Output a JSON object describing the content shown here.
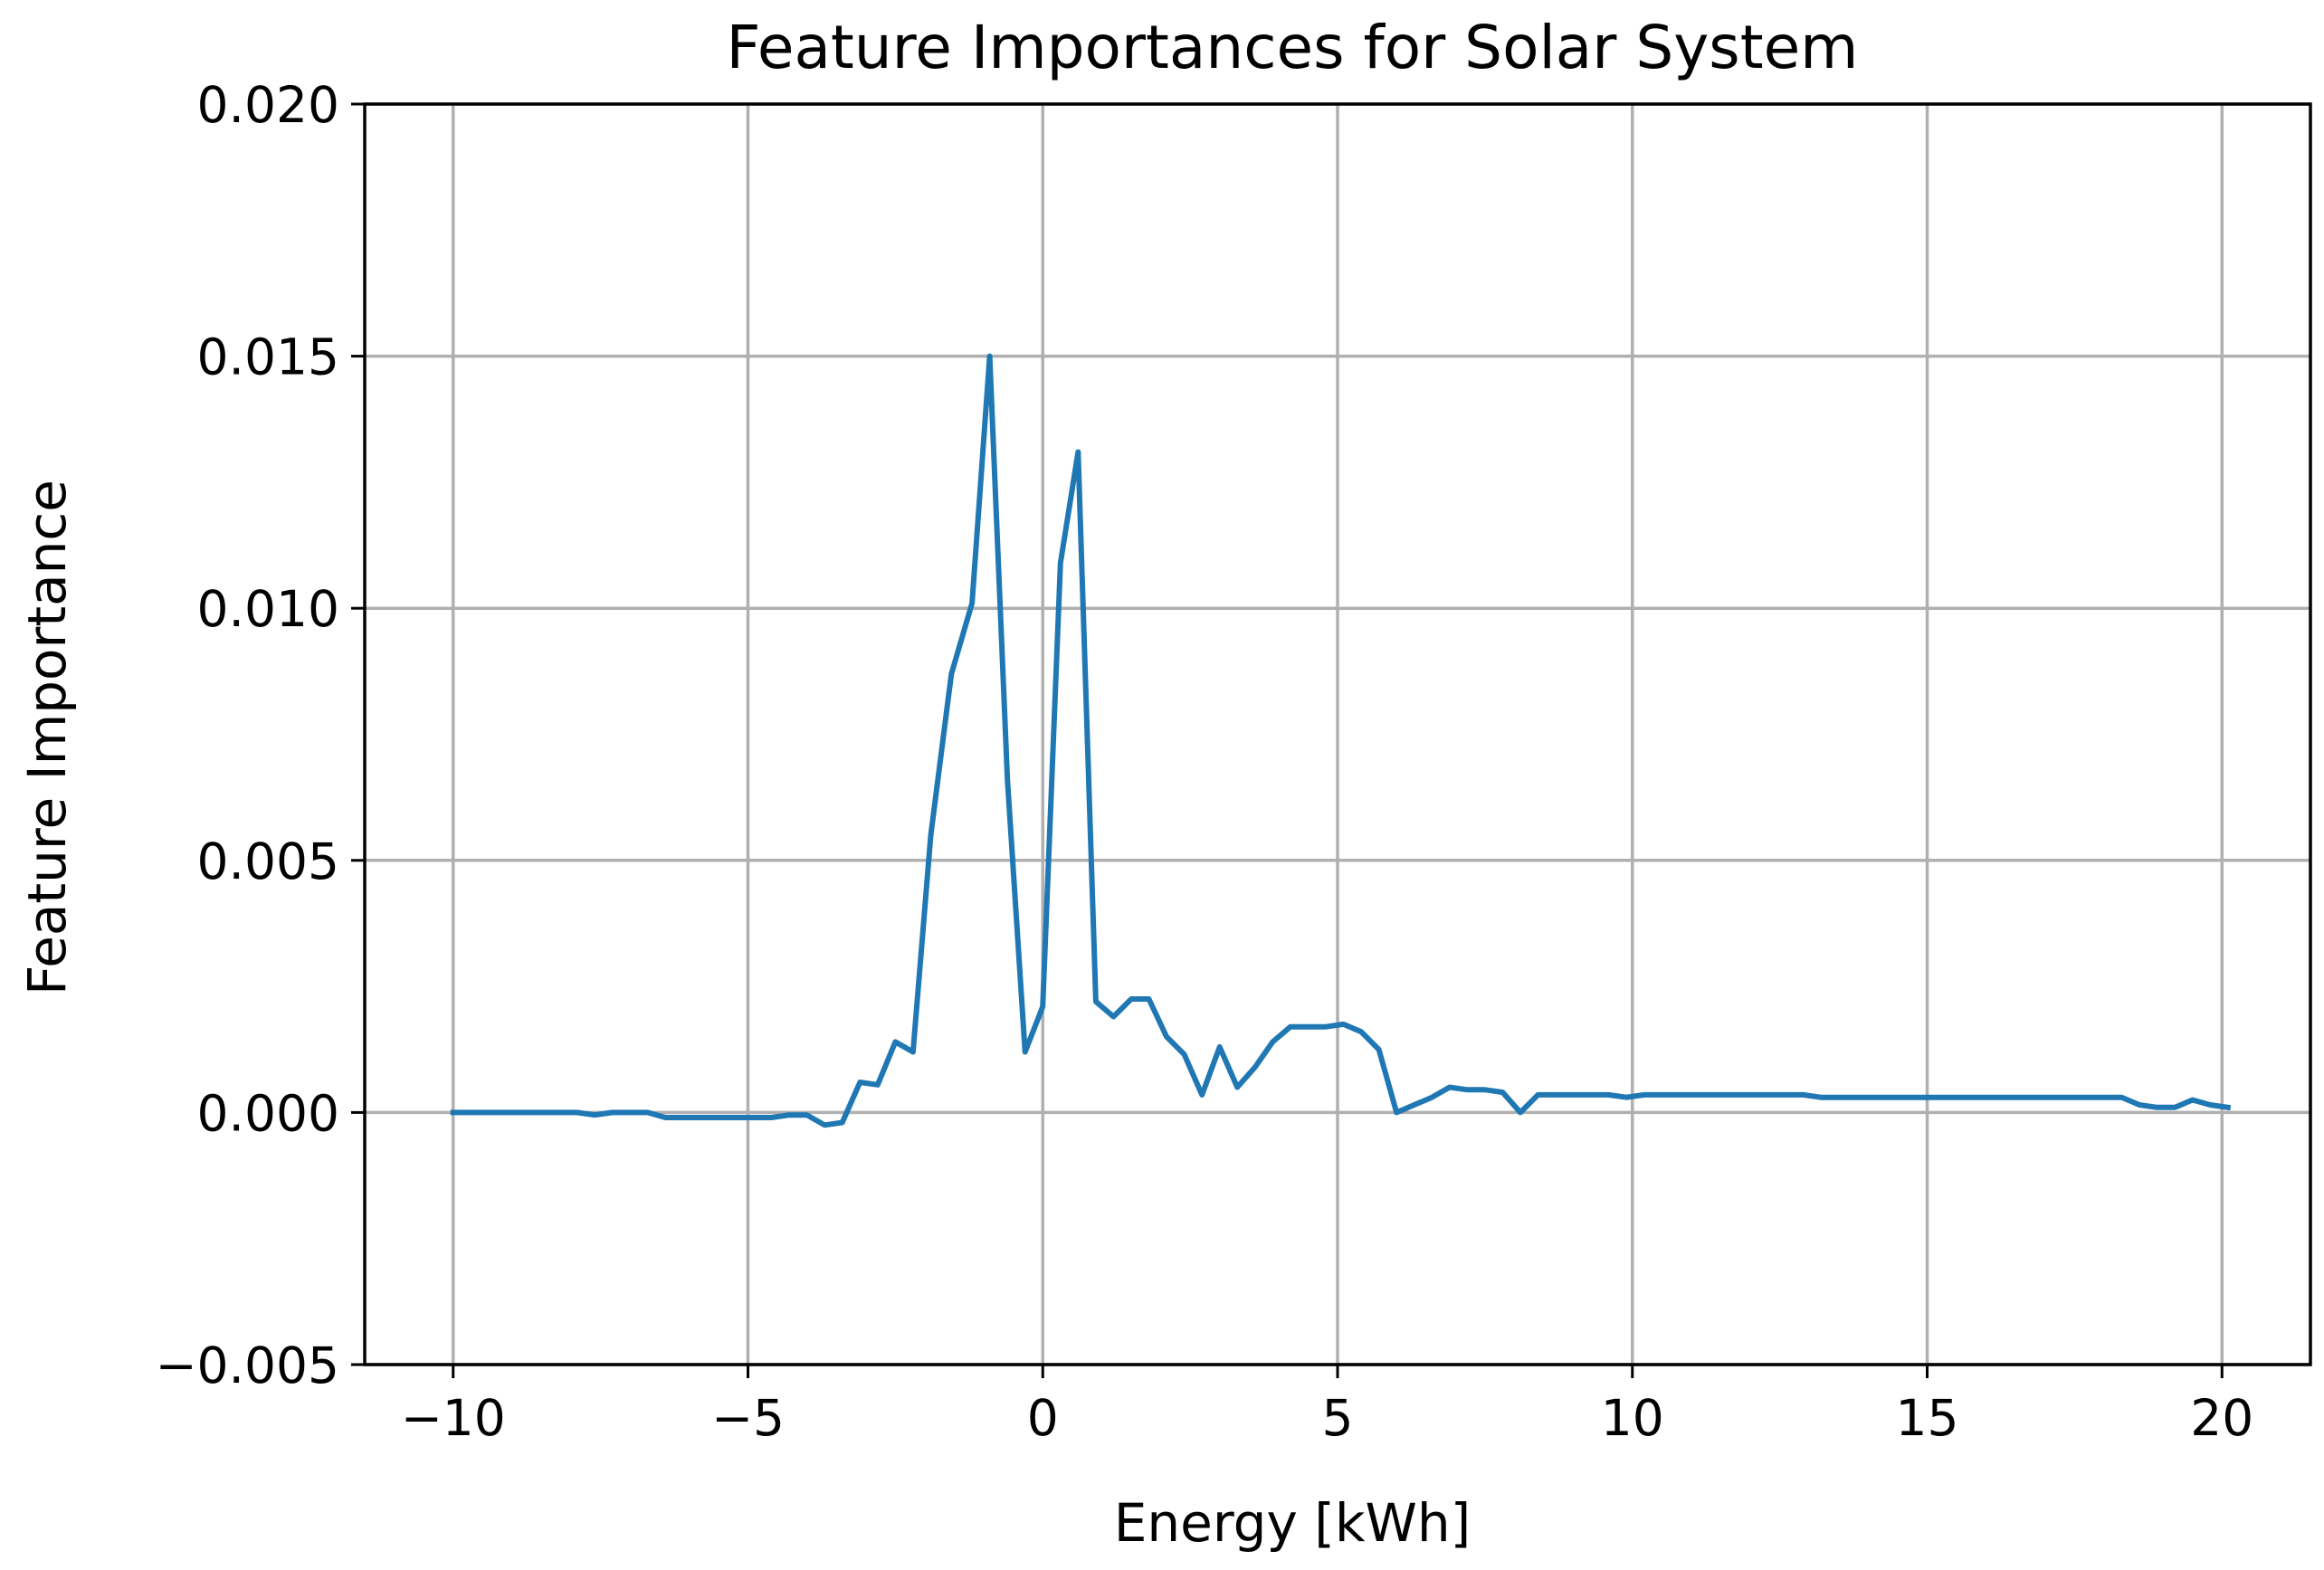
{
  "chart_data": {
    "type": "line",
    "title": "Feature Importances for Solar System",
    "xlabel": "Energy [kWh]",
    "ylabel": "Feature Importance",
    "xlim": [
      -11.5,
      21.5
    ],
    "ylim": [
      -0.005,
      0.02
    ],
    "grid": true,
    "line_color": "#1f77b4",
    "xticks": [
      -10,
      -5,
      0,
      5,
      10,
      15,
      20
    ],
    "xtick_labels": [
      "−10",
      "−5",
      "0",
      "5",
      "10",
      "15",
      "20"
    ],
    "yticks": [
      -0.005,
      0.0,
      0.005,
      0.01,
      0.015,
      0.02
    ],
    "ytick_labels": [
      "−0.005",
      "0.000",
      "0.005",
      "0.010",
      "0.015",
      "0.020"
    ],
    "series": [
      {
        "name": "feature importance",
        "x": [
          -10.0,
          -9.7,
          -9.4,
          -9.1,
          -8.8,
          -8.5,
          -8.2,
          -7.9,
          -7.6,
          -7.3,
          -7.0,
          -6.7,
          -6.4,
          -6.1,
          -5.8,
          -5.5,
          -5.2,
          -4.9,
          -4.6,
          -4.3,
          -4.0,
          -3.7,
          -3.4,
          -3.1,
          -2.8,
          -2.5,
          -2.2,
          -1.9,
          -1.55,
          -1.2,
          -0.9,
          -0.6,
          -0.3,
          0.0,
          0.3,
          0.6,
          0.9,
          1.2,
          1.5,
          1.8,
          2.1,
          2.4,
          2.7,
          3.0,
          3.3,
          3.6,
          3.9,
          4.2,
          4.5,
          4.8,
          5.1,
          5.4,
          5.7,
          6.0,
          6.3,
          6.6,
          6.9,
          7.2,
          7.5,
          7.8,
          8.1,
          8.4,
          8.7,
          9.0,
          9.3,
          9.6,
          9.9,
          10.2,
          10.5,
          10.8,
          11.1,
          11.4,
          11.7,
          12.0,
          12.3,
          12.6,
          12.9,
          13.2,
          13.5,
          13.8,
          14.1,
          14.4,
          14.7,
          15.0,
          15.3,
          15.6,
          15.9,
          16.2,
          16.5,
          16.8,
          17.1,
          17.4,
          17.7,
          18.0,
          18.3,
          18.6,
          18.9,
          19.2,
          19.5,
          19.8,
          20.1
        ],
        "y": [
          0.0,
          0.0,
          0.0,
          0.0,
          0.0,
          0.0,
          0.0,
          0.0,
          -5e-05,
          0.0,
          0.0,
          0.0,
          -0.0001,
          -0.0001,
          -0.0001,
          -0.0001,
          -0.0001,
          -0.0001,
          -0.0001,
          -5e-05,
          -5e-05,
          -0.00025,
          -0.0002,
          0.0006,
          0.00055,
          0.0014,
          0.0012,
          0.0055,
          0.0087,
          0.0101,
          0.015,
          0.0066,
          0.0012,
          0.0021,
          0.0109,
          0.0131,
          0.0022,
          0.0019,
          0.00225,
          0.00225,
          0.0015,
          0.00115,
          0.00035,
          0.0013,
          0.0005,
          0.0009,
          0.0014,
          0.0017,
          0.0017,
          0.0017,
          0.00175,
          0.0016,
          0.00125,
          0.0,
          0.00015,
          0.0003,
          0.0005,
          0.00045,
          0.00045,
          0.0004,
          0.0,
          0.00035,
          0.00035,
          0.00035,
          0.00035,
          0.00035,
          0.0003,
          0.00035,
          0.00035,
          0.00035,
          0.00035,
          0.00035,
          0.00035,
          0.00035,
          0.00035,
          0.00035,
          0.00035,
          0.0003,
          0.0003,
          0.0003,
          0.0003,
          0.0003,
          0.0003,
          0.0003,
          0.0003,
          0.0003,
          0.0003,
          0.0003,
          0.0003,
          0.0003,
          0.0003,
          0.0003,
          0.0003,
          0.0003,
          0.0003,
          0.00015,
          0.0001,
          0.0001,
          0.00025,
          0.00015,
          0.0001
        ]
      }
    ]
  }
}
